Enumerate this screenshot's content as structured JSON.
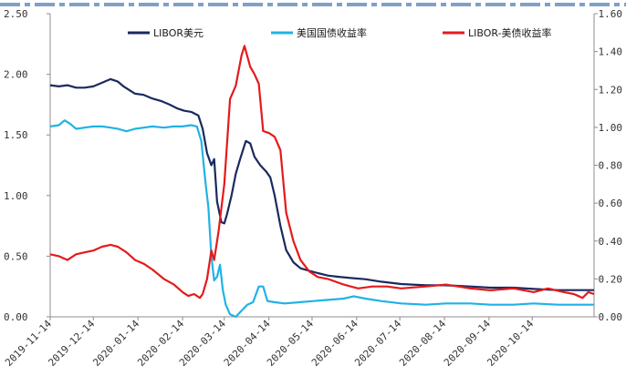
{
  "chart_data": {
    "type": "line",
    "colors": {
      "libor_usd": "#1a2a5e",
      "us_treasury_yield": "#21b2e6",
      "libor_minus_treasury": "#e41a1c",
      "top_dash": "#7fa0c8",
      "axis": "#8c8c8c"
    },
    "legend": {
      "placement": "top",
      "entries": [
        "LIBOR美元",
        "美国国债收益率",
        "LIBOR-美债收益率"
      ]
    },
    "left_axis": {
      "ylim": [
        0,
        2.5
      ],
      "ticks": [
        "0.00",
        "0.50",
        "1.00",
        "1.50",
        "2.00",
        "2.50"
      ]
    },
    "right_axis": {
      "ylim": [
        0,
        1.6
      ],
      "ticks": [
        "0.00",
        "0.20",
        "0.40",
        "0.60",
        "0.80",
        "1.00",
        "1.20",
        "1.40",
        "1.60"
      ]
    },
    "x_axis": {
      "range": [
        "2019-11-14",
        "2020-11-26"
      ],
      "ticks": [
        "2019-11-14",
        "2019-12-14",
        "2020-01-14",
        "2020-02-14",
        "2020-03-14",
        "2020-04-14",
        "2020-05-14",
        "2020-06-14",
        "2020-07-14",
        "2020-08-14",
        "2020-09-14",
        "2020-10-14"
      ]
    },
    "grid": false,
    "series": [
      {
        "name": "LIBOR美元",
        "axis": "left",
        "points": [
          [
            "2019-11-14",
            1.91
          ],
          [
            "2019-11-20",
            1.9
          ],
          [
            "2019-11-26",
            1.91
          ],
          [
            "2019-12-02",
            1.89
          ],
          [
            "2019-12-08",
            1.89
          ],
          [
            "2019-12-14",
            1.9
          ],
          [
            "2019-12-20",
            1.93
          ],
          [
            "2019-12-26",
            1.96
          ],
          [
            "2019-12-31",
            1.94
          ],
          [
            "2020-01-04",
            1.9
          ],
          [
            "2020-01-08",
            1.87
          ],
          [
            "2020-01-12",
            1.84
          ],
          [
            "2020-01-18",
            1.83
          ],
          [
            "2020-01-24",
            1.8
          ],
          [
            "2020-01-30",
            1.78
          ],
          [
            "2020-02-05",
            1.75
          ],
          [
            "2020-02-10",
            1.72
          ],
          [
            "2020-02-15",
            1.7
          ],
          [
            "2020-02-20",
            1.69
          ],
          [
            "2020-02-25",
            1.66
          ],
          [
            "2020-02-28",
            1.55
          ],
          [
            "2020-03-02",
            1.35
          ],
          [
            "2020-03-05",
            1.25
          ],
          [
            "2020-03-07",
            1.3
          ],
          [
            "2020-03-09",
            0.95
          ],
          [
            "2020-03-12",
            0.78
          ],
          [
            "2020-03-14",
            0.77
          ],
          [
            "2020-03-16",
            0.85
          ],
          [
            "2020-03-19",
            1.0
          ],
          [
            "2020-03-22",
            1.18
          ],
          [
            "2020-03-25",
            1.3
          ],
          [
            "2020-03-29",
            1.45
          ],
          [
            "2020-04-01",
            1.43
          ],
          [
            "2020-04-04",
            1.32
          ],
          [
            "2020-04-08",
            1.25
          ],
          [
            "2020-04-12",
            1.2
          ],
          [
            "2020-04-15",
            1.15
          ],
          [
            "2020-04-18",
            1.0
          ],
          [
            "2020-04-22",
            0.75
          ],
          [
            "2020-04-26",
            0.55
          ],
          [
            "2020-05-01",
            0.45
          ],
          [
            "2020-05-06",
            0.4
          ],
          [
            "2020-05-12",
            0.38
          ],
          [
            "2020-05-18",
            0.36
          ],
          [
            "2020-05-25",
            0.34
          ],
          [
            "2020-06-01",
            0.33
          ],
          [
            "2020-06-10",
            0.32
          ],
          [
            "2020-06-20",
            0.31
          ],
          [
            "2020-07-01",
            0.29
          ],
          [
            "2020-07-15",
            0.27
          ],
          [
            "2020-08-01",
            0.26
          ],
          [
            "2020-08-15",
            0.26
          ],
          [
            "2020-09-01",
            0.25
          ],
          [
            "2020-09-15",
            0.24
          ],
          [
            "2020-10-01",
            0.24
          ],
          [
            "2020-10-15",
            0.23
          ],
          [
            "2020-11-01",
            0.22
          ],
          [
            "2020-11-15",
            0.22
          ],
          [
            "2020-11-26",
            0.22
          ]
        ]
      },
      {
        "name": "美国国债收益率",
        "axis": "left",
        "points": [
          [
            "2019-11-14",
            1.57
          ],
          [
            "2019-11-20",
            1.58
          ],
          [
            "2019-11-24",
            1.62
          ],
          [
            "2019-11-28",
            1.59
          ],
          [
            "2019-12-02",
            1.55
          ],
          [
            "2019-12-08",
            1.56
          ],
          [
            "2019-12-14",
            1.57
          ],
          [
            "2019-12-20",
            1.57
          ],
          [
            "2019-12-26",
            1.56
          ],
          [
            "2019-12-31",
            1.55
          ],
          [
            "2020-01-06",
            1.53
          ],
          [
            "2020-01-12",
            1.55
          ],
          [
            "2020-01-18",
            1.56
          ],
          [
            "2020-01-24",
            1.57
          ],
          [
            "2020-02-01",
            1.56
          ],
          [
            "2020-02-08",
            1.57
          ],
          [
            "2020-02-14",
            1.57
          ],
          [
            "2020-02-20",
            1.58
          ],
          [
            "2020-02-24",
            1.57
          ],
          [
            "2020-02-27",
            1.45
          ],
          [
            "2020-03-01",
            1.1
          ],
          [
            "2020-03-03",
            0.9
          ],
          [
            "2020-03-05",
            0.5
          ],
          [
            "2020-03-07",
            0.3
          ],
          [
            "2020-03-09",
            0.33
          ],
          [
            "2020-03-11",
            0.43
          ],
          [
            "2020-03-13",
            0.22
          ],
          [
            "2020-03-15",
            0.1
          ],
          [
            "2020-03-18",
            0.02
          ],
          [
            "2020-03-22",
            0.0
          ],
          [
            "2020-03-26",
            0.05
          ],
          [
            "2020-03-30",
            0.1
          ],
          [
            "2020-04-03",
            0.12
          ],
          [
            "2020-04-07",
            0.25
          ],
          [
            "2020-04-10",
            0.25
          ],
          [
            "2020-04-13",
            0.13
          ],
          [
            "2020-04-18",
            0.12
          ],
          [
            "2020-04-25",
            0.11
          ],
          [
            "2020-05-05",
            0.12
          ],
          [
            "2020-05-15",
            0.13
          ],
          [
            "2020-05-25",
            0.14
          ],
          [
            "2020-06-05",
            0.15
          ],
          [
            "2020-06-12",
            0.17
          ],
          [
            "2020-06-20",
            0.15
          ],
          [
            "2020-07-01",
            0.13
          ],
          [
            "2020-07-15",
            0.11
          ],
          [
            "2020-08-01",
            0.1
          ],
          [
            "2020-08-15",
            0.11
          ],
          [
            "2020-09-01",
            0.11
          ],
          [
            "2020-09-15",
            0.1
          ],
          [
            "2020-10-01",
            0.1
          ],
          [
            "2020-10-15",
            0.11
          ],
          [
            "2020-11-01",
            0.1
          ],
          [
            "2020-11-15",
            0.1
          ],
          [
            "2020-11-26",
            0.1
          ]
        ]
      },
      {
        "name": "LIBOR-美债收益率",
        "axis": "right",
        "points": [
          [
            "2019-11-14",
            0.33
          ],
          [
            "2019-11-20",
            0.32
          ],
          [
            "2019-11-26",
            0.3
          ],
          [
            "2019-12-02",
            0.33
          ],
          [
            "2019-12-08",
            0.34
          ],
          [
            "2019-12-14",
            0.35
          ],
          [
            "2019-12-20",
            0.37
          ],
          [
            "2019-12-26",
            0.38
          ],
          [
            "2019-12-31",
            0.37
          ],
          [
            "2020-01-06",
            0.34
          ],
          [
            "2020-01-12",
            0.3
          ],
          [
            "2020-01-18",
            0.28
          ],
          [
            "2020-01-24",
            0.25
          ],
          [
            "2020-02-01",
            0.2
          ],
          [
            "2020-02-08",
            0.17
          ],
          [
            "2020-02-14",
            0.13
          ],
          [
            "2020-02-18",
            0.11
          ],
          [
            "2020-02-22",
            0.12
          ],
          [
            "2020-02-26",
            0.1
          ],
          [
            "2020-02-28",
            0.12
          ],
          [
            "2020-03-02",
            0.2
          ],
          [
            "2020-03-05",
            0.35
          ],
          [
            "2020-03-07",
            0.3
          ],
          [
            "2020-03-10",
            0.45
          ],
          [
            "2020-03-14",
            0.7
          ],
          [
            "2020-03-18",
            1.15
          ],
          [
            "2020-03-22",
            1.22
          ],
          [
            "2020-03-26",
            1.38
          ],
          [
            "2020-03-28",
            1.43
          ],
          [
            "2020-04-01",
            1.32
          ],
          [
            "2020-04-04",
            1.28
          ],
          [
            "2020-04-07",
            1.23
          ],
          [
            "2020-04-10",
            0.98
          ],
          [
            "2020-04-14",
            0.97
          ],
          [
            "2020-04-18",
            0.95
          ],
          [
            "2020-04-22",
            0.88
          ],
          [
            "2020-04-26",
            0.55
          ],
          [
            "2020-05-01",
            0.4
          ],
          [
            "2020-05-06",
            0.3
          ],
          [
            "2020-05-12",
            0.24
          ],
          [
            "2020-05-18",
            0.21
          ],
          [
            "2020-05-25",
            0.2
          ],
          [
            "2020-06-05",
            0.17
          ],
          [
            "2020-06-15",
            0.15
          ],
          [
            "2020-06-25",
            0.16
          ],
          [
            "2020-07-05",
            0.16
          ],
          [
            "2020-07-15",
            0.15
          ],
          [
            "2020-08-01",
            0.16
          ],
          [
            "2020-08-15",
            0.17
          ],
          [
            "2020-09-01",
            0.15
          ],
          [
            "2020-09-15",
            0.14
          ],
          [
            "2020-10-01",
            0.15
          ],
          [
            "2020-10-15",
            0.13
          ],
          [
            "2020-10-25",
            0.15
          ],
          [
            "2020-11-05",
            0.13
          ],
          [
            "2020-11-12",
            0.12
          ],
          [
            "2020-11-18",
            0.1
          ],
          [
            "2020-11-22",
            0.13
          ],
          [
            "2020-11-26",
            0.12
          ]
        ]
      }
    ]
  }
}
